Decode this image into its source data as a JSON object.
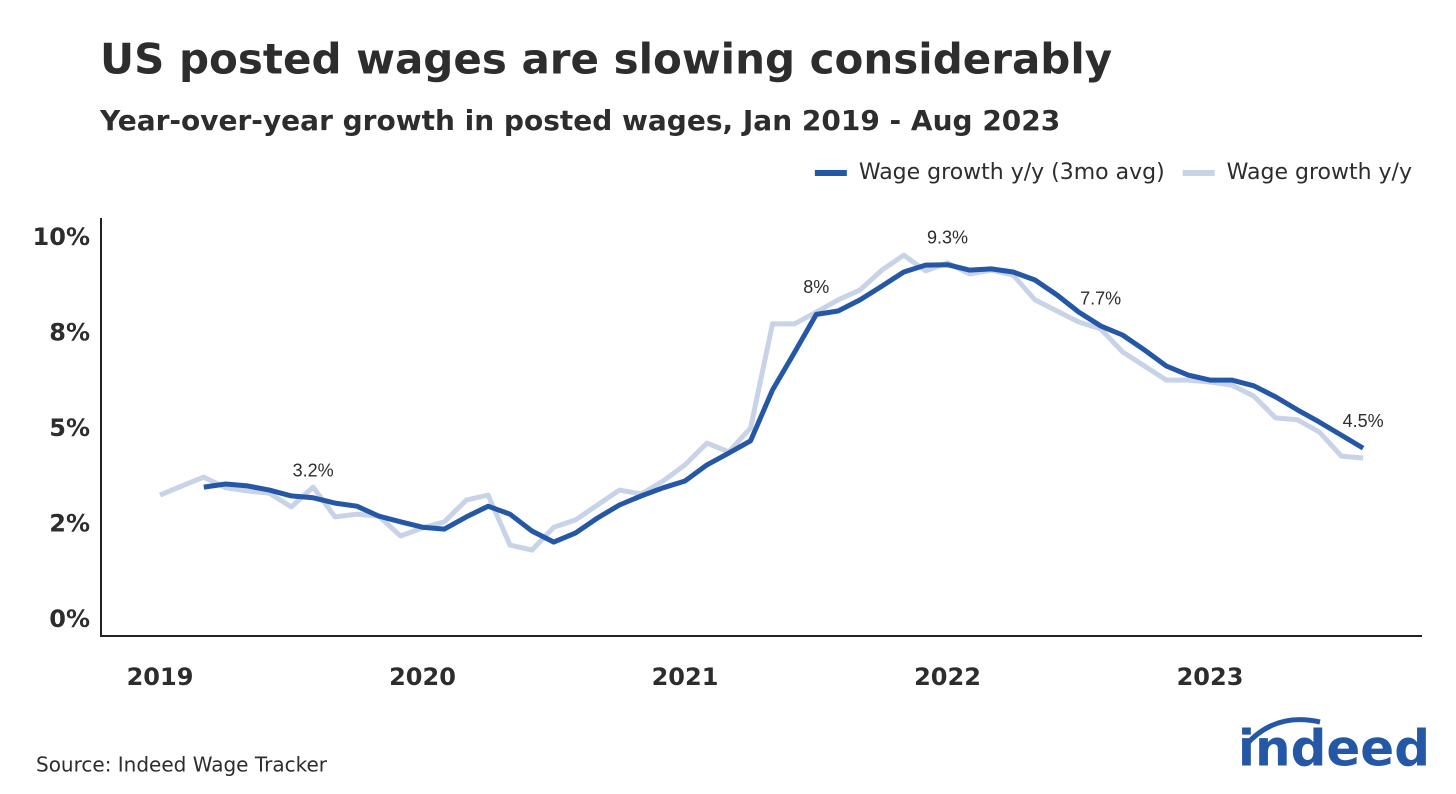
{
  "chart_data": {
    "type": "line",
    "title": "US posted wages are slowing considerably",
    "subtitle": "Year-over-year growth in posted wages, Jan 2019 - Aug 2023",
    "source": "Source: Indeed Wage Tracker",
    "logo": "indeed",
    "categories": [
      "2019",
      null,
      null,
      null,
      null,
      null,
      null,
      null,
      null,
      null,
      null,
      null,
      "2020",
      null,
      null,
      null,
      null,
      null,
      null,
      null,
      null,
      null,
      null,
      null,
      "2021",
      null,
      null,
      null,
      null,
      null,
      null,
      null,
      null,
      null,
      null,
      null,
      "2022",
      null,
      null,
      null,
      null,
      null,
      null,
      null,
      null,
      null,
      null,
      null,
      "2023",
      null,
      null,
      null,
      null,
      null,
      null,
      null
    ],
    "series": [
      {
        "name": "Wage growth y/y (3mo avg)",
        "color": "#2557a7",
        "values": [
          null,
          null,
          3.48,
          3.56,
          3.51,
          3.4,
          3.25,
          3.2,
          3.06,
          2.98,
          2.72,
          2.57,
          2.43,
          2.38,
          2.7,
          2.98,
          2.77,
          2.33,
          2.04,
          2.28,
          2.67,
          3.01,
          3.25,
          3.46,
          3.64,
          4.06,
          4.37,
          4.69,
          6.02,
          7.0,
          8.0,
          8.09,
          8.38,
          8.74,
          9.11,
          9.29,
          9.3,
          9.16,
          9.19,
          9.11,
          8.9,
          8.51,
          8.06,
          7.7,
          7.46,
          7.07,
          6.65,
          6.41,
          6.28,
          6.28,
          6.13,
          5.84,
          5.5,
          5.18,
          4.84,
          4.5
        ],
        "value_labels": [
          null,
          null,
          null,
          null,
          null,
          null,
          null,
          "3.2%",
          null,
          null,
          null,
          null,
          null,
          null,
          null,
          null,
          null,
          null,
          null,
          null,
          null,
          null,
          null,
          null,
          null,
          null,
          null,
          null,
          null,
          null,
          "8%",
          null,
          null,
          null,
          null,
          null,
          "9.3%",
          null,
          null,
          null,
          null,
          null,
          null,
          "7.7%",
          null,
          null,
          null,
          null,
          null,
          null,
          null,
          null,
          null,
          null,
          null,
          "4.5%"
        ]
      },
      {
        "name": "Wage growth y/y",
        "color": "#c8d3e8",
        "values": [
          3.27,
          3.51,
          3.74,
          3.46,
          3.38,
          3.32,
          2.96,
          3.48,
          2.7,
          2.77,
          2.72,
          2.2,
          2.41,
          2.57,
          3.14,
          3.27,
          1.96,
          1.83,
          2.43,
          2.62,
          3.01,
          3.4,
          3.3,
          3.64,
          4.06,
          4.63,
          4.4,
          5.03,
          7.75,
          7.75,
          8.06,
          8.38,
          8.64,
          9.16,
          9.55,
          9.14,
          9.35,
          9.06,
          9.16,
          9.03,
          8.38,
          8.09,
          7.8,
          7.62,
          7.02,
          6.65,
          6.28,
          6.28,
          6.23,
          6.15,
          5.86,
          5.29,
          5.24,
          4.92,
          4.29,
          4.24
        ]
      }
    ],
    "ylim": [
      0,
      10
    ],
    "yticks": [
      {
        "value": 0,
        "label": "0%"
      },
      {
        "value": 2.5,
        "label": "2%"
      },
      {
        "value": 5,
        "label": "5%"
      },
      {
        "value": 7.5,
        "label": "8%"
      },
      {
        "value": 10,
        "label": "10%"
      }
    ],
    "legend": "top-right"
  }
}
